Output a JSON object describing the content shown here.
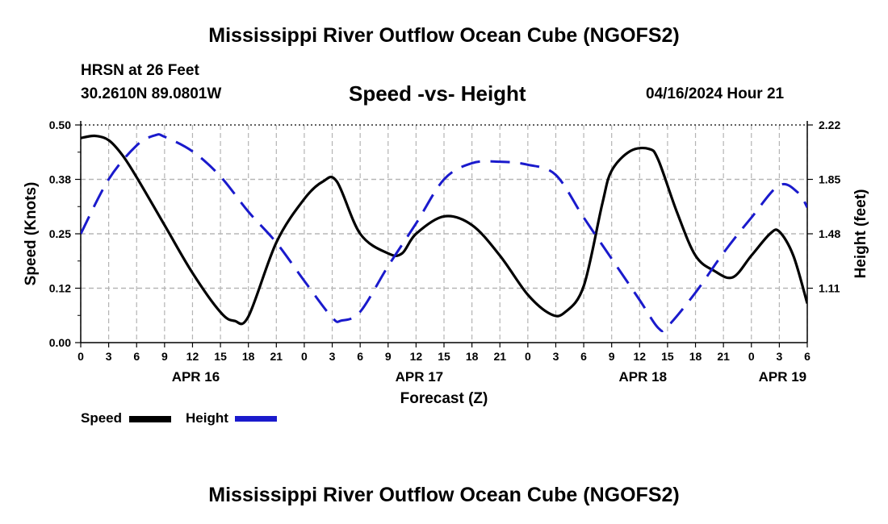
{
  "header": {
    "title": "Mississippi River Outflow Ocean Cube (NGOFS2)",
    "station": "HRSN at 26 Feet",
    "coords": "30.2610N  89.0801W",
    "subtitle": "Speed -vs- Height",
    "datetime": "04/16/2024 Hour 21"
  },
  "footer": {
    "title": "Mississippi River Outflow Ocean Cube (NGOFS2)"
  },
  "legend": {
    "speed_label": "Speed",
    "height_label": "Height"
  },
  "colors": {
    "speed": "#000000",
    "height": "#1a1acc",
    "grid": "#b4b4b4"
  },
  "chart_data": {
    "type": "line",
    "xlabel": "Forecast (Z)",
    "ylabel_left": "Speed (Knots)",
    "ylabel_right": "Height (feet)",
    "x_unit": "hours since 2024-04-16 00Z",
    "xlim": [
      0,
      78
    ],
    "ylim_left": [
      0.0,
      0.5
    ],
    "ylim_right": [
      0.74,
      2.22
    ],
    "x_tick_labels": [
      "0",
      "3",
      "6",
      "9",
      "12",
      "15",
      "18",
      "21",
      "0",
      "3",
      "6",
      "9",
      "12",
      "15",
      "18",
      "21",
      "0",
      "3",
      "6",
      "9",
      "12",
      "15",
      "18",
      "21",
      "0",
      "3",
      "6"
    ],
    "date_labels": [
      {
        "label": "APR 16",
        "hour": 12
      },
      {
        "label": "APR 17",
        "hour": 36
      },
      {
        "label": "APR 18",
        "hour": 60
      },
      {
        "label": "APR 19",
        "hour": 75
      }
    ],
    "left_ticks": [
      {
        "value": 0.0,
        "label": "0.00"
      },
      {
        "value": 0.125,
        "label": "0.12"
      },
      {
        "value": 0.25,
        "label": "0.25"
      },
      {
        "value": 0.375,
        "label": "0.38"
      },
      {
        "value": 0.5,
        "label": "0.50"
      }
    ],
    "right_ticks": [
      {
        "value": 1.11,
        "label": "1.11"
      },
      {
        "value": 1.48,
        "label": "1.48"
      },
      {
        "value": 1.85,
        "label": "1.85"
      },
      {
        "value": 2.22,
        "label": "2.22"
      }
    ],
    "grid": true,
    "series": [
      {
        "name": "Speed",
        "axis": "left",
        "style": "solid",
        "x": [
          0,
          1.5,
          3,
          4.5,
          6,
          9,
          12,
          15,
          16.5,
          18,
          21,
          24,
          26,
          27.5,
          30,
          33,
          34.5,
          36,
          39,
          42,
          45,
          48,
          50.5,
          52,
          54,
          56,
          57,
          59,
          61,
          62,
          64,
          66,
          68,
          70,
          72,
          74,
          75,
          76.5,
          78
        ],
        "values": [
          0.47,
          0.475,
          0.465,
          0.43,
          0.38,
          0.27,
          0.16,
          0.07,
          0.05,
          0.06,
          0.23,
          0.33,
          0.37,
          0.37,
          0.25,
          0.205,
          0.205,
          0.25,
          0.29,
          0.27,
          0.2,
          0.11,
          0.065,
          0.07,
          0.13,
          0.32,
          0.395,
          0.44,
          0.445,
          0.42,
          0.3,
          0.2,
          0.165,
          0.15,
          0.2,
          0.25,
          0.255,
          0.2,
          0.09
        ]
      },
      {
        "name": "Height",
        "axis": "right",
        "style": "dashed",
        "x": [
          0,
          3,
          6,
          8,
          9,
          12,
          15,
          18,
          21,
          24,
          27,
          28,
          30,
          33,
          36,
          39,
          42,
          45,
          48,
          51,
          54,
          57,
          60,
          62,
          63,
          66,
          69,
          72,
          75,
          77,
          78
        ],
        "values": [
          1.48,
          1.85,
          2.08,
          2.15,
          2.14,
          2.04,
          1.87,
          1.63,
          1.42,
          1.16,
          0.91,
          0.89,
          0.95,
          1.26,
          1.55,
          1.85,
          1.96,
          1.97,
          1.95,
          1.88,
          1.59,
          1.31,
          1.03,
          0.84,
          0.85,
          1.08,
          1.35,
          1.59,
          1.81,
          1.76,
          1.66
        ]
      }
    ]
  }
}
